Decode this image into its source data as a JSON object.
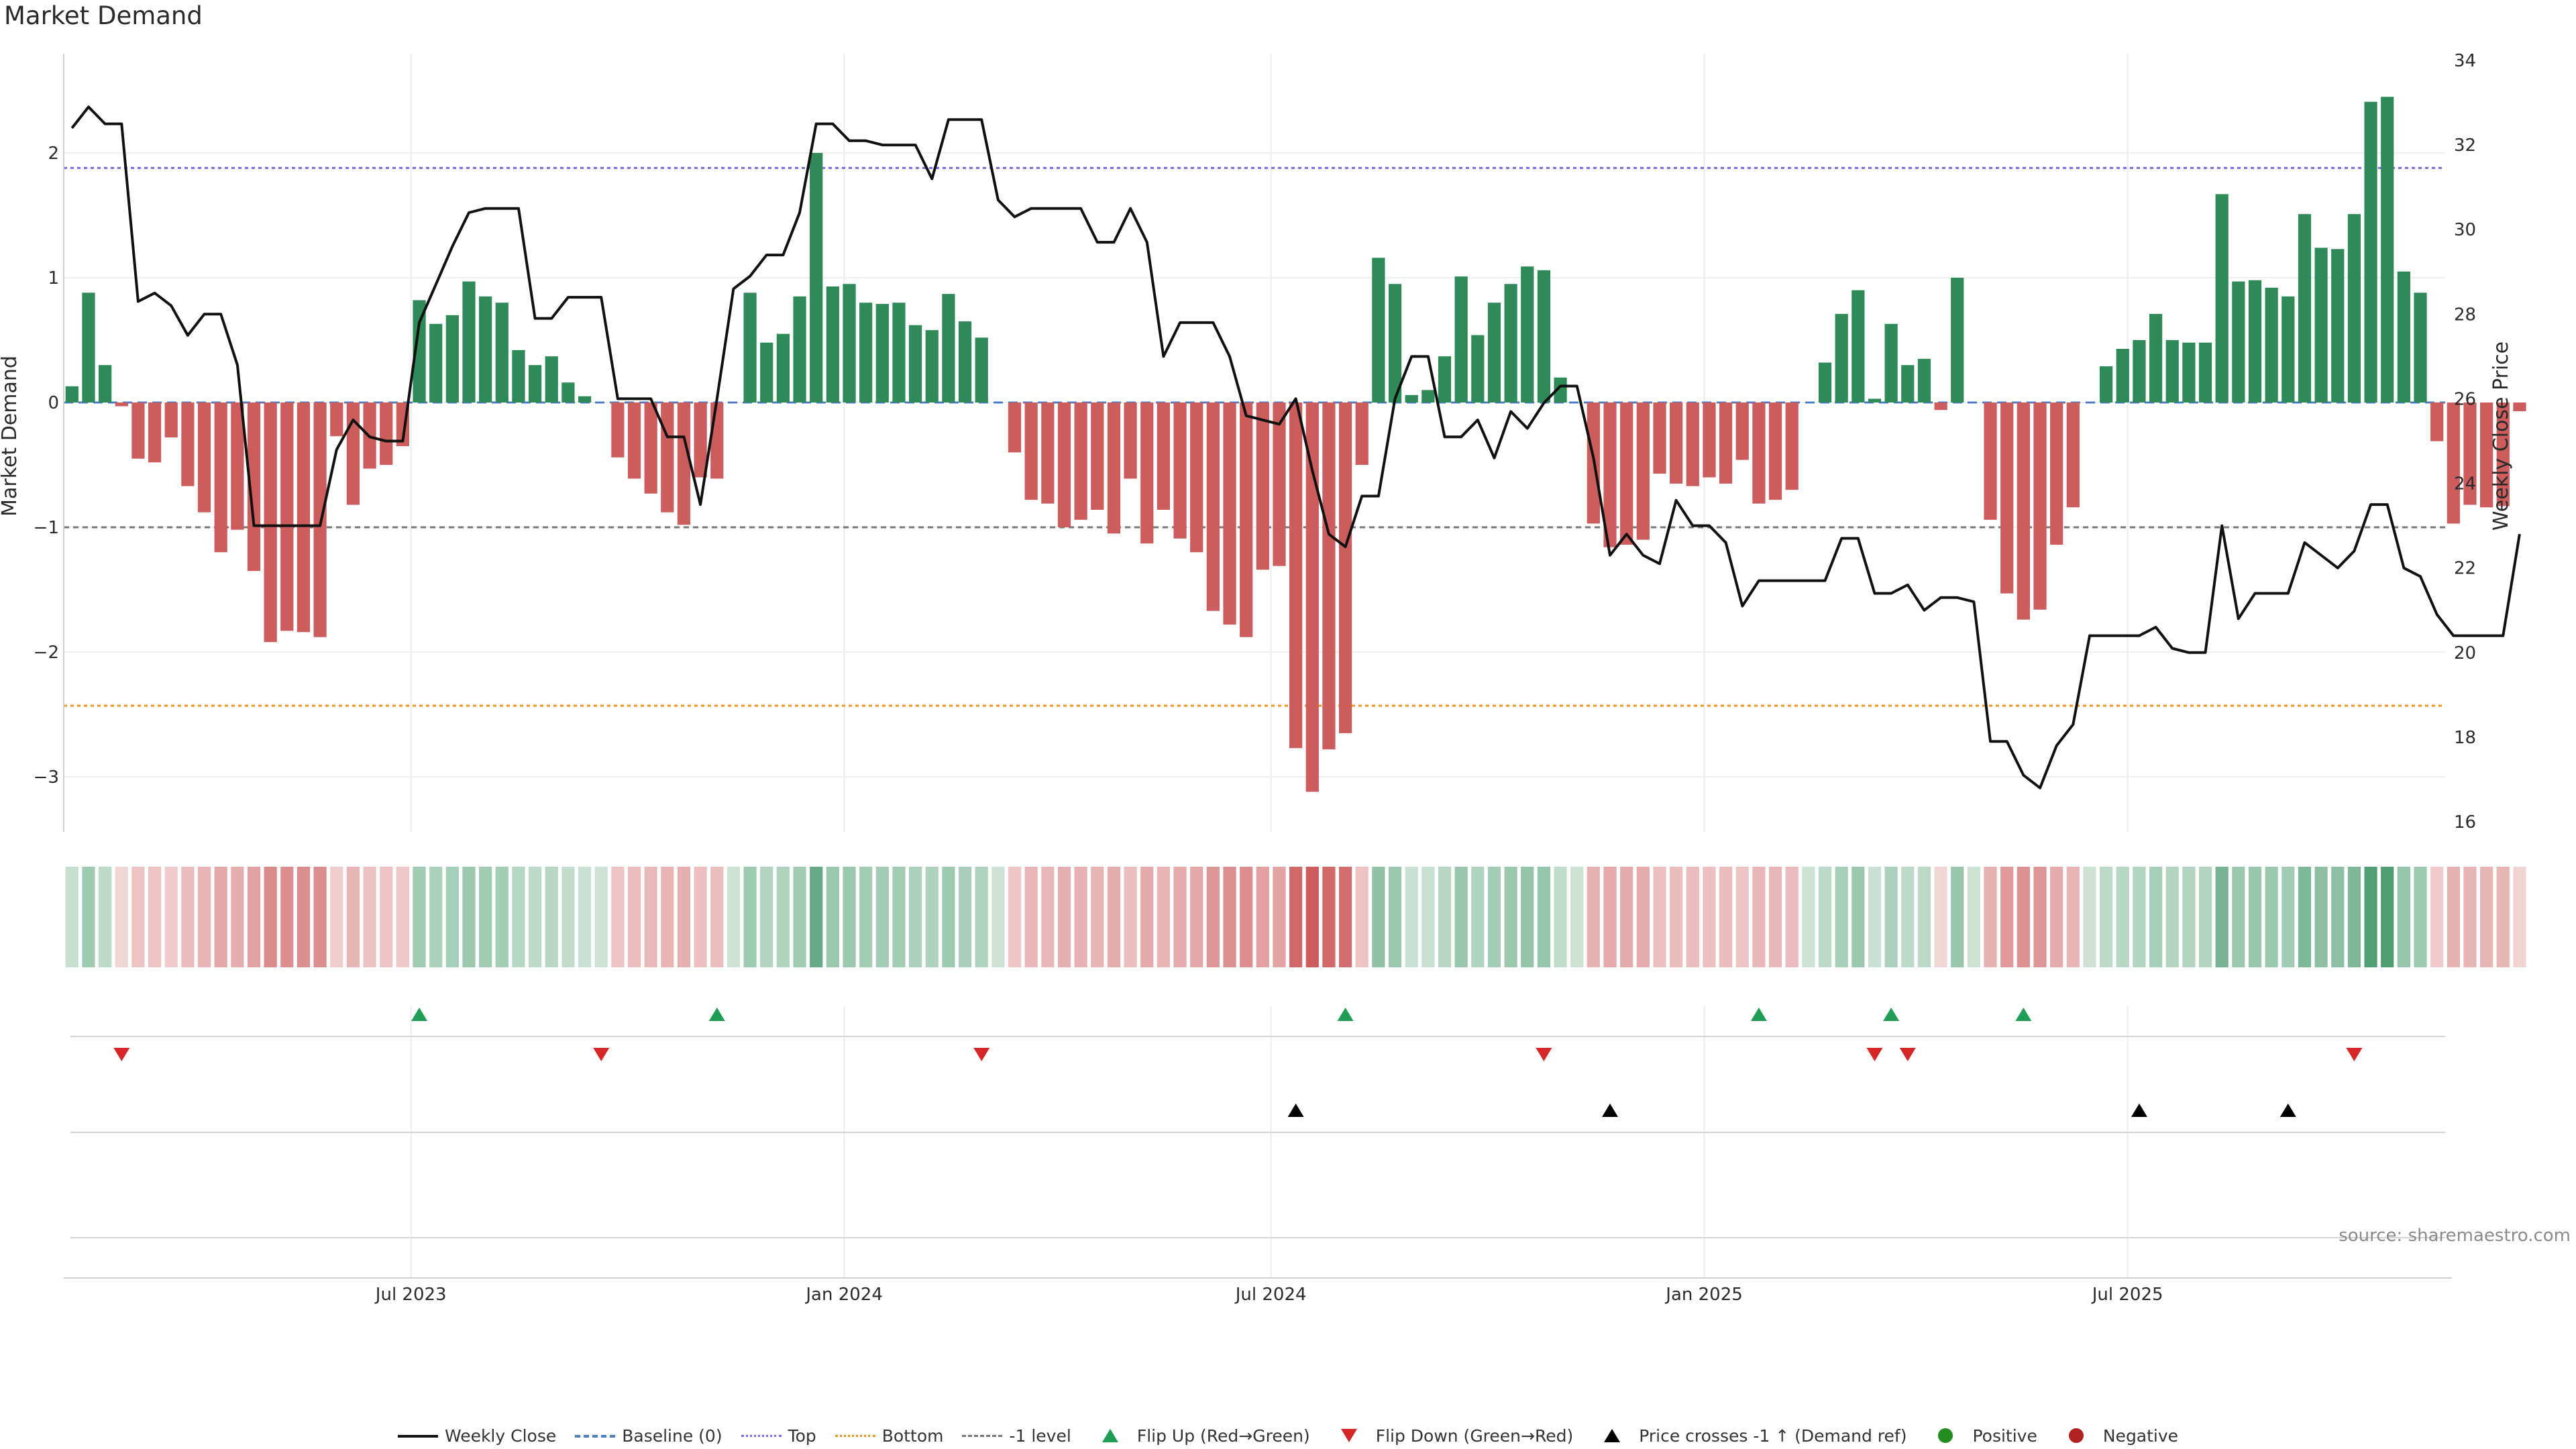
{
  "title": "Market Demand",
  "source": "source: sharemaestro.com",
  "axes": {
    "left_label": "Market Demand",
    "right_label": "Weekly Close Price",
    "left_ticks": [
      "2",
      "1",
      "0",
      "−1",
      "−2",
      "−3"
    ],
    "right_ticks": [
      "34",
      "32",
      "30",
      "28",
      "26",
      "24",
      "22",
      "20",
      "18",
      "16"
    ],
    "x_ticks": [
      "Jul 2023",
      "Jan 2024",
      "Jul 2024",
      "Jan 2025",
      "Jul 2025"
    ]
  },
  "legend": {
    "weekly_close": "Weekly Close",
    "baseline": "Baseline (0)",
    "top": "Top",
    "bottom": "Bottom",
    "minus1": "-1 level",
    "flip_up": "Flip Up (Red→Green)",
    "flip_down": "Flip Down (Green→Red)",
    "price_cross": "Price crosses -1 ↑ (Demand ref)",
    "positive": "Positive",
    "negative": "Negative"
  },
  "colors": {
    "positive": "#2e8b57",
    "negative": "#cd5c5c",
    "price": "#111111",
    "baseline": "#4a7fc1",
    "top": "#7b68ee",
    "bottom": "#e8961e",
    "minus1": "#777777",
    "flip_up": "#1f9d55",
    "flip_down": "#d62728",
    "cross": "#000000",
    "dot_pos": "#228b22",
    "dot_neg": "#b22222"
  },
  "chart_data": {
    "type": "bar",
    "title": "Market Demand",
    "xlabel": "",
    "ylabel": "Market Demand",
    "y2label": "Weekly Close Price",
    "ylim": [
      -3.4,
      2.8
    ],
    "y2lim": [
      15.8,
      34.2
    ],
    "levels": {
      "baseline": 0,
      "top": 1.88,
      "bottom": -2.43,
      "minus1": -1.0
    },
    "x_tick_index": {
      "Jul 2023": 20.5,
      "Jan 2024": 46.7,
      "Jul 2024": 72.5,
      "Jan 2025": 98.7,
      "Jul 2025": 124.3
    },
    "weeks": 144,
    "demand": [
      0.13,
      0.88,
      0.3,
      -0.03,
      -0.45,
      -0.48,
      -0.28,
      -0.67,
      -0.88,
      -1.2,
      -1.02,
      -1.35,
      -1.92,
      -1.83,
      -1.84,
      -1.88,
      -0.27,
      -0.82,
      -0.53,
      -0.5,
      -0.35,
      0.82,
      0.63,
      0.7,
      0.97,
      0.85,
      0.8,
      0.42,
      0.3,
      0.37,
      0.16,
      0.05,
      0.0,
      -0.44,
      -0.61,
      -0.73,
      -0.88,
      -0.98,
      -0.6,
      -0.61,
      0.0,
      0.88,
      0.48,
      0.55,
      0.85,
      2.0,
      0.93,
      0.95,
      0.8,
      0.79,
      0.8,
      0.62,
      0.58,
      0.87,
      0.65,
      0.52,
      0.0,
      -0.4,
      -0.78,
      -0.81,
      -1.0,
      -0.94,
      -0.86,
      -1.05,
      -0.61,
      -1.13,
      -0.86,
      -1.09,
      -1.2,
      -1.67,
      -1.78,
      -1.88,
      -1.34,
      -1.31,
      -2.77,
      -3.12,
      -2.78,
      -2.65,
      -0.5,
      1.16,
      0.95,
      0.06,
      0.1,
      0.37,
      1.01,
      0.54,
      0.8,
      0.95,
      1.09,
      1.06,
      0.2,
      0.0,
      -0.97,
      -1.16,
      -1.14,
      -1.1,
      -0.57,
      -0.65,
      -0.67,
      -0.6,
      -0.65,
      -0.46,
      -0.81,
      -0.78,
      -0.7,
      0.0,
      0.32,
      0.71,
      0.9,
      0.03,
      0.63,
      0.3,
      0.35,
      -0.06,
      1.0,
      0.0,
      -0.94,
      -1.53,
      -1.74,
      -1.66,
      -1.14,
      -0.84,
      0.0,
      0.29,
      0.43,
      0.5,
      0.71,
      0.5,
      0.48,
      0.48,
      1.67,
      0.97,
      0.98,
      0.92,
      0.85,
      1.51,
      1.24,
      1.23,
      1.51,
      2.41,
      2.45,
      1.05,
      0.88,
      -0.31,
      -0.97,
      -0.82,
      -0.84,
      -0.83,
      -0.07
    ],
    "price": [
      32.4,
      32.9,
      32.5,
      32.5,
      28.3,
      28.5,
      28.2,
      27.5,
      28.0,
      28.0,
      26.8,
      23.0,
      23.0,
      23.0,
      23.0,
      23.0,
      24.8,
      25.5,
      25.1,
      25.0,
      25.0,
      27.8,
      28.7,
      29.6,
      30.4,
      30.5,
      30.5,
      30.5,
      27.9,
      27.9,
      28.4,
      28.4,
      28.4,
      26.0,
      26.0,
      26.0,
      25.1,
      25.1,
      23.5,
      26.0,
      28.6,
      28.9,
      29.4,
      29.4,
      30.4,
      32.5,
      32.5,
      32.1,
      32.1,
      32.0,
      32.0,
      32.0,
      31.2,
      32.6,
      32.6,
      32.6,
      30.7,
      30.3,
      30.5,
      30.5,
      30.5,
      30.5,
      29.7,
      29.7,
      30.5,
      29.7,
      27.0,
      27.8,
      27.8,
      27.8,
      27.0,
      25.6,
      25.5,
      25.4,
      26.0,
      24.3,
      22.8,
      22.5,
      23.7,
      23.7,
      26.0,
      27.0,
      27.0,
      25.1,
      25.1,
      25.5,
      24.6,
      25.7,
      25.3,
      25.9,
      26.3,
      26.3,
      24.6,
      22.3,
      22.8,
      22.3,
      22.1,
      23.6,
      23.0,
      23.0,
      22.6,
      21.1,
      21.7,
      21.7,
      21.7,
      21.7,
      21.7,
      22.7,
      22.7,
      21.4,
      21.4,
      21.6,
      21.0,
      21.3,
      21.3,
      21.2,
      17.9,
      17.9,
      17.1,
      16.8,
      17.8,
      18.3,
      20.4,
      20.4,
      20.4,
      20.4,
      20.6,
      20.1,
      20.0,
      20.0,
      23.0,
      20.8,
      21.4,
      21.4,
      21.4,
      22.6,
      22.3,
      22.0,
      22.4,
      23.5,
      23.5,
      22.0,
      21.8,
      20.9,
      20.4,
      20.4,
      20.4,
      20.4,
      22.8
    ],
    "flip_up_index": [
      21,
      39,
      77,
      102,
      110,
      118
    ],
    "flip_down_index": [
      3,
      32,
      55,
      89,
      109,
      111,
      138
    ],
    "price_cross_index": [
      74,
      93,
      125,
      134
    ]
  }
}
